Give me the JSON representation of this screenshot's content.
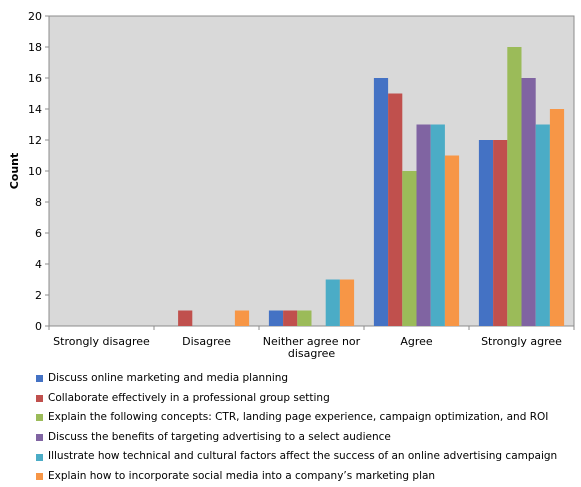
{
  "chart_data": {
    "type": "bar",
    "categories": [
      "Strongly disagree",
      "Disagree",
      "Neither agree nor disagree",
      "Agree",
      "Strongly agree"
    ],
    "category_lines": [
      [
        "Strongly disagree"
      ],
      [
        "Disagree"
      ],
      [
        "Neither agree nor",
        "disagree"
      ],
      [
        "Agree"
      ],
      [
        "Strongly agree"
      ]
    ],
    "ylabel": "Count",
    "xlabel": "",
    "title": "",
    "ylim": [
      0,
      20
    ],
    "yticks": [
      0,
      2,
      4,
      6,
      8,
      10,
      12,
      14,
      16,
      18,
      20
    ],
    "grid": false,
    "legend_position": "bottom",
    "plot_background": "#d9d9d9",
    "series": [
      {
        "name": "Discuss online marketing and media planning",
        "color": "#4472c4",
        "values": [
          0,
          0,
          1,
          16,
          12
        ]
      },
      {
        "name": "Collaborate effectively in a professional group setting",
        "color": "#c0504d",
        "values": [
          0,
          1,
          1,
          15,
          12
        ]
      },
      {
        "name": "Explain the following concepts: CTR, landing page experience, campaign optimization, and ROI",
        "color": "#9bbb59",
        "values": [
          0,
          0,
          1,
          10,
          18
        ]
      },
      {
        "name": "Discuss the benefits of targeting advertising to a select audience",
        "color": "#8064a2",
        "values": [
          0,
          0,
          0,
          13,
          16
        ]
      },
      {
        "name": "Illustrate how technical and cultural factors affect the success of an online advertising campaign",
        "color": "#4bacc6",
        "values": [
          0,
          0,
          3,
          13,
          13
        ]
      },
      {
        "name": "Explain how to incorporate social media into a company’s marketing plan",
        "color": "#f79646",
        "values": [
          0,
          1,
          3,
          11,
          14
        ]
      }
    ]
  }
}
